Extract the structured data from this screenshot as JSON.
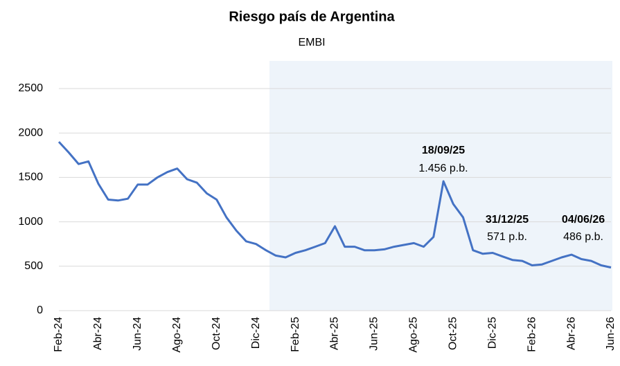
{
  "chart_data": {
    "type": "line",
    "title": "Riesgo país de Argentina",
    "subtitle": "EMBI",
    "categories": [
      "Feb-24",
      null,
      null,
      null,
      "Abr-24",
      null,
      null,
      null,
      "Jun-24",
      null,
      null,
      null,
      "Ago-24",
      null,
      null,
      null,
      "Oct-24",
      null,
      null,
      null,
      "Dic-24",
      null,
      null,
      null,
      "Feb-25",
      null,
      null,
      null,
      "Abr-25",
      null,
      null,
      null,
      "Jun-25",
      null,
      null,
      null,
      "Ago-25",
      null,
      null,
      null,
      "Oct-25",
      null,
      null,
      null,
      "Dic-25",
      null,
      null,
      null,
      "Feb-26",
      null,
      null,
      null,
      "Abr-26",
      null,
      null,
      null,
      "Jun-26"
    ],
    "series": [
      {
        "name": "EMBI",
        "color": "#4472c4",
        "values": [
          1900,
          1780,
          1650,
          1680,
          1430,
          1250,
          1240,
          1260,
          1420,
          1420,
          1500,
          1560,
          1600,
          1480,
          1440,
          1320,
          1250,
          1050,
          900,
          780,
          750,
          680,
          620,
          600,
          650,
          680,
          720,
          760,
          950,
          720,
          720,
          680,
          680,
          690,
          720,
          740,
          760,
          720,
          830,
          1456,
          1200,
          1050,
          680,
          640,
          650,
          610,
          571,
          560,
          510,
          520,
          560,
          600,
          630,
          580,
          560,
          510,
          486
        ]
      }
    ],
    "annotations": [
      {
        "date": "18/09/25",
        "value": 1456,
        "label": "1.456 p.b."
      },
      {
        "date": "31/12/25",
        "value": 571,
        "label": "571 p.b."
      },
      {
        "date": "04/06/26",
        "value": 486,
        "label": "486 p.b."
      }
    ],
    "ylim": [
      0,
      2500
    ],
    "yticks": [
      0,
      500,
      1000,
      1500,
      2000,
      2500
    ],
    "grid": true
  }
}
